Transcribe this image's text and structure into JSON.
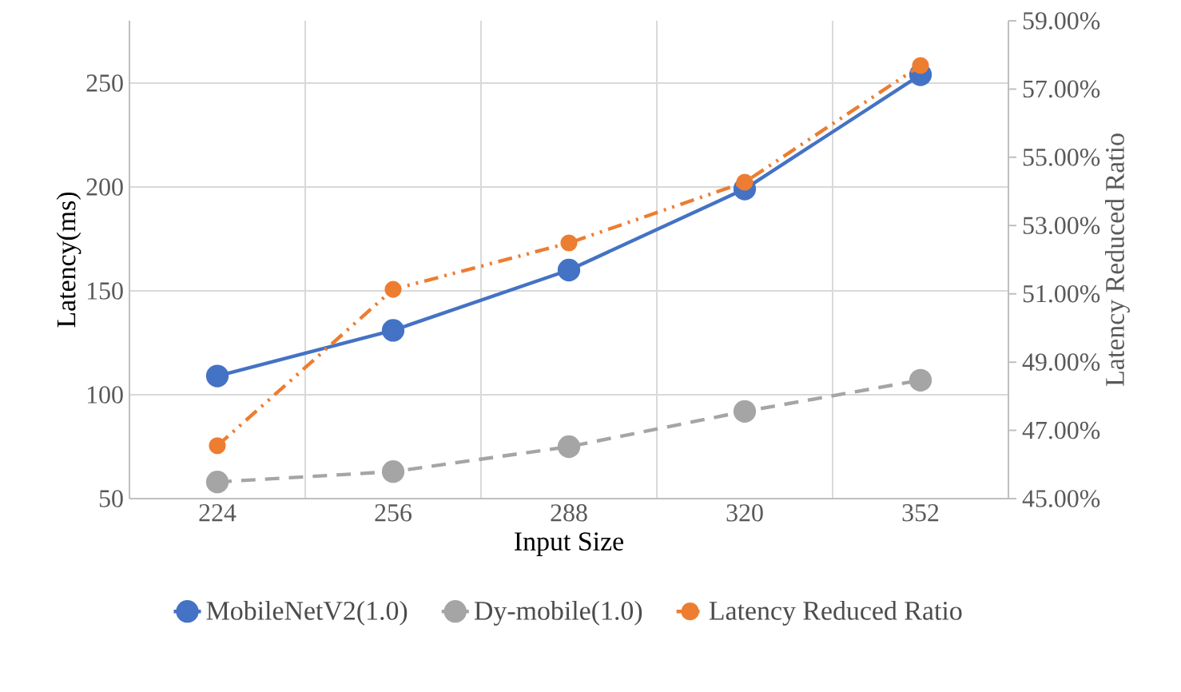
{
  "chart_data": {
    "type": "line",
    "xlabel": "Input Size",
    "ylabel": "Latency(ms)",
    "y2label": "Latency Reduced Ratio",
    "categories": [
      "224",
      "256",
      "288",
      "320",
      "352"
    ],
    "series": [
      {
        "name": "MobileNetV2(1.0)",
        "color": "#4472c4",
        "values": [
          109,
          131,
          160,
          199,
          254
        ],
        "line_style": "solid"
      },
      {
        "name": "Dy-mobile(1.0)",
        "color": "#a5a5a5",
        "values": [
          58,
          63,
          75,
          92,
          107
        ],
        "line_style": "dashed"
      },
      {
        "name": "Latency Reduced Ratio",
        "color": "#ed7d31",
        "values": [
          46.55,
          51.13,
          52.49,
          54.27,
          57.69
        ],
        "axis": "y2",
        "line_style": "dashdotdotted"
      }
    ],
    "ylim": [
      50,
      280
    ],
    "yticks": [
      50,
      100,
      150,
      200,
      250
    ],
    "y2lim": [
      45,
      59
    ],
    "y2ticks": [
      {
        "value": 45,
        "label": "45.00%"
      },
      {
        "value": 47,
        "label": "47.00%"
      },
      {
        "value": 49,
        "label": "49.00%"
      },
      {
        "value": 51,
        "label": "51.00%"
      },
      {
        "value": 53,
        "label": "53.00%"
      },
      {
        "value": 55,
        "label": "55.00%"
      },
      {
        "value": 57,
        "label": "57.00%"
      },
      {
        "value": 59,
        "label": "59.00%"
      }
    ],
    "grid": true,
    "legend": "bottom",
    "marker": "circle"
  }
}
